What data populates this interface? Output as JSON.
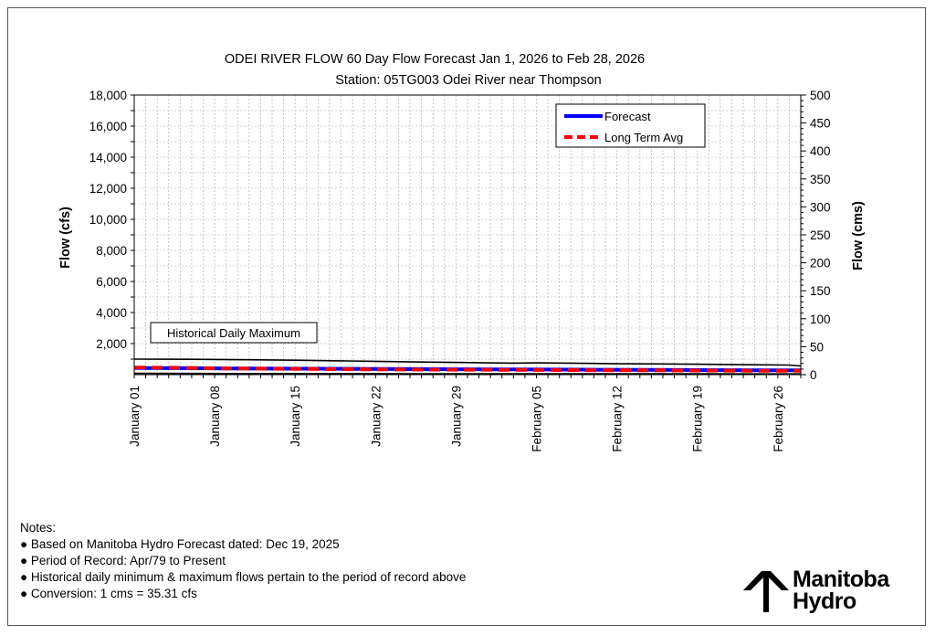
{
  "chart_data": {
    "type": "line",
    "title": "ODEI RIVER  FLOW 60 Day Flow Forecast Jan 1, 2026 to Feb 28, 2026",
    "subtitle": "Station: 05TG003 Odei River near Thompson",
    "ylabel": "Flow (cfs)",
    "y2label": "Flow (cms)",
    "ylim": [
      0,
      18000
    ],
    "y2lim": [
      0,
      500
    ],
    "yticks": [
      "2,000",
      "4,000",
      "6,000",
      "8,000",
      "10,000",
      "12,000",
      "14,000",
      "16,000",
      "18,000"
    ],
    "y2ticks": [
      "0",
      "50",
      "100",
      "150",
      "200",
      "250",
      "300",
      "350",
      "400",
      "450",
      "500"
    ],
    "xlim": [
      0,
      58
    ],
    "x_tick_labels": [
      {
        "day": 0,
        "label": "January 01"
      },
      {
        "day": 7,
        "label": "January 08"
      },
      {
        "day": 14,
        "label": "January 15"
      },
      {
        "day": 21,
        "label": "January 22"
      },
      {
        "day": 28,
        "label": "January 29"
      },
      {
        "day": 35,
        "label": "February 05"
      },
      {
        "day": 42,
        "label": "February 12"
      },
      {
        "day": 49,
        "label": "February 19"
      },
      {
        "day": 56,
        "label": "February 26"
      }
    ],
    "grid": true,
    "legend_position": "top-right",
    "annotation": "Historical Daily Maximum",
    "series": [
      {
        "name": "Forecast",
        "color": "#0000ff",
        "style": "solid",
        "x": [
          0,
          4,
          8,
          12,
          16,
          20,
          24,
          28,
          32,
          36,
          40,
          44,
          48,
          52,
          56,
          58
        ],
        "y": [
          430,
          420,
          400,
          390,
          380,
          370,
          360,
          350,
          340,
          330,
          320,
          310,
          300,
          290,
          280,
          275
        ]
      },
      {
        "name": "Long Term Avg",
        "color": "#ff0000",
        "style": "dashed",
        "x": [
          0,
          4,
          8,
          12,
          16,
          20,
          24,
          28,
          32,
          36,
          40,
          44,
          48,
          52,
          56,
          58
        ],
        "y": [
          460,
          440,
          400,
          380,
          360,
          340,
          330,
          320,
          310,
          300,
          290,
          285,
          270,
          260,
          250,
          245
        ]
      },
      {
        "name": "",
        "color": "#000000",
        "style": "solid",
        "x": [
          0,
          5,
          10,
          14,
          18,
          21,
          25,
          30,
          33,
          35,
          39,
          42,
          46,
          49,
          53,
          57,
          58
        ],
        "y": [
          1000,
          990,
          960,
          930,
          890,
          860,
          810,
          770,
          740,
          760,
          730,
          700,
          690,
          670,
          640,
          620,
          560
        ]
      },
      {
        "name": "",
        "color": "#000000",
        "style": "solid",
        "x": [
          0,
          5,
          10,
          15,
          20,
          25,
          30,
          35,
          40,
          45,
          50,
          55,
          58
        ],
        "y": [
          80,
          75,
          70,
          70,
          65,
          60,
          60,
          55,
          55,
          50,
          50,
          45,
          45
        ]
      }
    ]
  },
  "notes": {
    "heading": "Notes:",
    "items": [
      "● Based on Manitoba Hydro Forecast dated:  Dec 19, 2025",
      "● Period of Record: Apr/79 to Present",
      "● Historical daily minimum & maximum  flows pertain to the period of record above",
      "● Conversion:  1 cms = 35.31 cfs"
    ]
  },
  "logo": {
    "line1": "Manitoba",
    "line2": "Hydro",
    "icon": "manitoba-hydro-tower-icon"
  }
}
